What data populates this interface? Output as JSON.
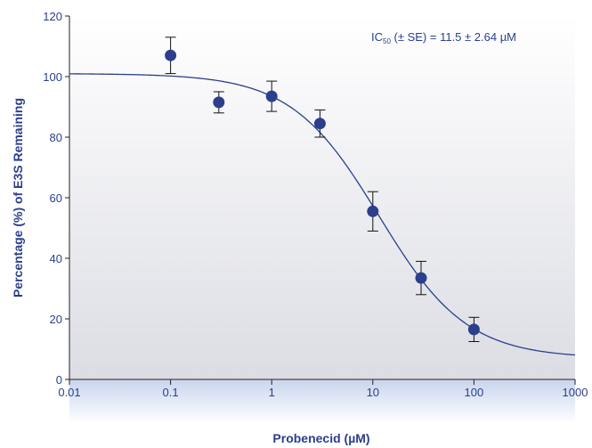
{
  "chart_data": {
    "type": "scatter",
    "title": "",
    "xlabel": "Probenecid (µM)",
    "ylabel": "Percentage (%) of E3S Remaining",
    "x_scale": "log",
    "xlim": [
      0.01,
      1000
    ],
    "ylim": [
      0,
      120
    ],
    "x_ticks": [
      0.01,
      0.1,
      1,
      10,
      100,
      1000
    ],
    "x_tick_labels": [
      "0.01",
      "0.1",
      "1",
      "10",
      "100",
      "1000"
    ],
    "y_ticks": [
      0,
      20,
      40,
      60,
      80,
      100,
      120
    ],
    "y_tick_labels": [
      "0",
      "20",
      "40",
      "60",
      "80",
      "100",
      "120"
    ],
    "grid": false,
    "series": [
      {
        "x": [
          0.1,
          0.3,
          1,
          3,
          10,
          30,
          100
        ],
        "y": [
          107,
          91.5,
          93.5,
          84.5,
          55.5,
          33.5,
          16.5
        ],
        "yerr": [
          6,
          3.5,
          5,
          4.5,
          6.5,
          5.5,
          4
        ]
      }
    ],
    "fit_curve": {
      "model": "sigmoid",
      "top": 101,
      "bottom": 7,
      "ic50": 11.5,
      "hill": 1
    },
    "annotation": {
      "prefix": "IC",
      "subscript": "50",
      "suffix": " (± SE) = 11.5 ± 2.64 µM"
    },
    "colors": {
      "point": "#2b3f8c",
      "curve": "#2b3f8c",
      "text": "#2b3f8c",
      "plot_bg_top": "#ffffff",
      "plot_bg_bottom": "#dcdde4",
      "band_top": "#c9d5ee",
      "band_bottom": "#ffffff",
      "axis": "#222222",
      "errorbar": "#111111"
    }
  }
}
